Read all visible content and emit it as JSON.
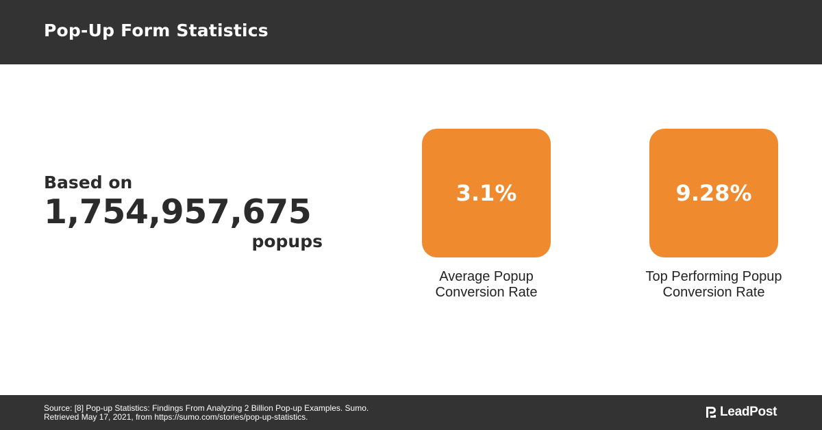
{
  "header": {
    "title": "Pop-Up Form Statistics"
  },
  "lead": {
    "prefix": "Based on",
    "number": "1,754,957,675",
    "suffix": "popups"
  },
  "stats": [
    {
      "value": "3.1%",
      "label_line1": "Average Popup",
      "label_line2": "Conversion Rate"
    },
    {
      "value": "9.28%",
      "label_line1": "Top Performing Popup",
      "label_line2": "Conversion Rate"
    }
  ],
  "footer": {
    "source_line1": "Source: [8] Pop-up Statistics: Findings From Analyzing 2 Billion Pop-up Examples. Sumo.",
    "source_line2": "Retrieved May 17, 2021, from https://sumo.com/stories/pop-up-statistics.",
    "brand_name": "LeadPost"
  },
  "colors": {
    "header_bg": "#333333",
    "accent": "#f08a2f",
    "text_dark": "#2b2b2b",
    "footer_bg": "#333333"
  },
  "icons": {
    "brand_logo": "leadpost-logo-icon"
  }
}
